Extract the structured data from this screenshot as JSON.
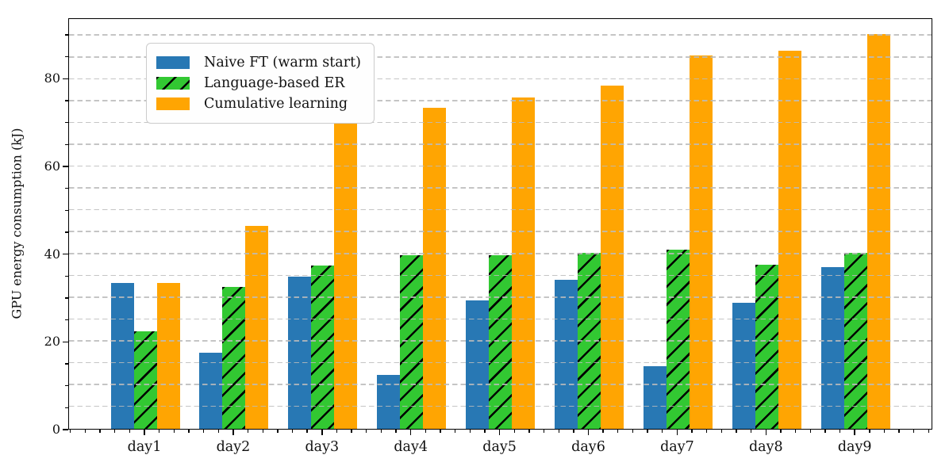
{
  "chart_data": {
    "type": "bar",
    "title": "",
    "xlabel": "",
    "ylabel": "GPU energy consumption (kJ)",
    "categories": [
      "day1",
      "day2",
      "day3",
      "day4",
      "day5",
      "day6",
      "day7",
      "day8",
      "day9"
    ],
    "series": [
      {
        "name": "Naive FT (warm start)",
        "color": "#2878b4",
        "hatch": "none",
        "values": [
          33.3,
          17.5,
          34.8,
          12.4,
          29.4,
          34.1,
          14.4,
          28.8,
          37.1
        ]
      },
      {
        "name": "Language-based ER",
        "color": "#32c832",
        "hatch": "/",
        "values": [
          22.3,
          32.4,
          37.4,
          39.7,
          39.8,
          40.2,
          41.0,
          37.5,
          40.2
        ]
      },
      {
        "name": "Cumulative learning",
        "color": "#ffa502",
        "hatch": "none",
        "values": [
          33.4,
          46.5,
          70.4,
          73.5,
          75.8,
          78.6,
          85.5,
          86.5,
          90.3
        ]
      }
    ],
    "ylim": [
      0,
      93.8
    ],
    "yticks_major": [
      0,
      20,
      40,
      60,
      80
    ],
    "ytick_labels": [
      "0",
      "20",
      "40",
      "60",
      "80"
    ],
    "minor_tick_interval_y": 5,
    "grid": "on",
    "grid_interval": 5,
    "grid_style": "dashed",
    "grid_color": "#bbbbbb",
    "hatch_color": "#000000",
    "axis_color": "#000000",
    "background_color": "#ffffff",
    "legend_position": "upper left"
  }
}
